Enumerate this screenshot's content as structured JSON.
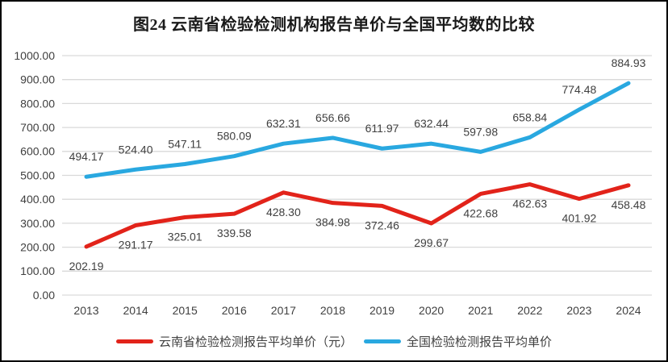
{
  "chart_data": {
    "type": "line",
    "title": "图24 云南省检验检测机构报告单价与全国平均数的比较",
    "categories": [
      "2013",
      "2014",
      "2015",
      "2016",
      "2017",
      "2018",
      "2019",
      "2020",
      "2021",
      "2022",
      "2023",
      "2024"
    ],
    "series": [
      {
        "name": "云南省检验检测报告平均单价（元）",
        "color": "#E2231A",
        "label_position": "below",
        "values": [
          202.19,
          291.17,
          325.01,
          339.58,
          428.3,
          384.98,
          372.46,
          299.67,
          422.68,
          462.63,
          401.92,
          458.48
        ]
      },
      {
        "name": "全国检验检测报告平均单价",
        "color": "#29A8E0",
        "label_position": "above",
        "values": [
          494.17,
          524.4,
          547.11,
          580.09,
          632.31,
          656.66,
          611.97,
          632.44,
          597.98,
          658.84,
          774.48,
          884.93
        ]
      }
    ],
    "ylim": [
      0,
      1000
    ],
    "ytick_step": 100,
    "yticks": [
      "0.00",
      "100.00",
      "200.00",
      "300.00",
      "400.00",
      "500.00",
      "600.00",
      "700.00",
      "800.00",
      "900.00",
      "1000.00"
    ],
    "value_label_decimals": 2,
    "grid": true,
    "legend_position": "bottom",
    "colors": {
      "gridline": "#D9D9D9",
      "axis_text": "#404040",
      "data_label_text": "#404040",
      "title_text": "#1a1a1a"
    }
  }
}
